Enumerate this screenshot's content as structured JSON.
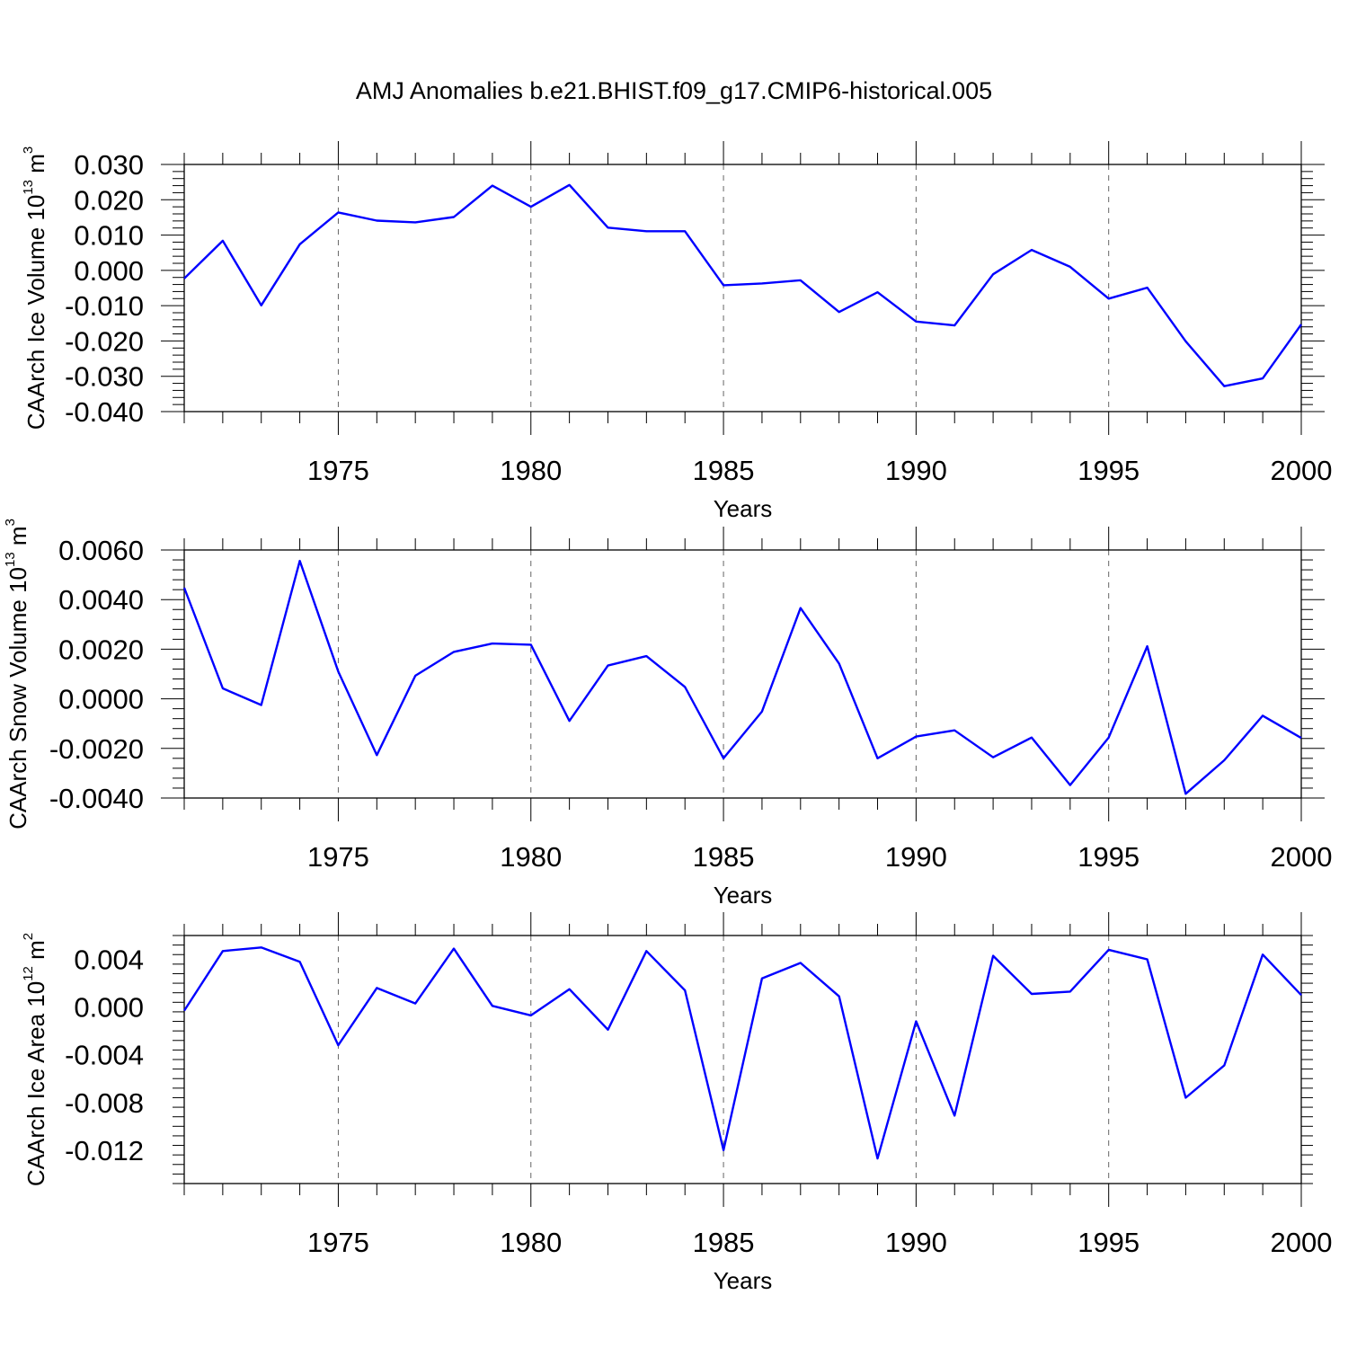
{
  "title": "AMJ Anomalies b.e21.BHIST.f09_g17.CMIP6-historical.005",
  "colors": {
    "series": "#0000ff",
    "axis": "#000000",
    "grid": "#666666"
  },
  "chart_data": [
    {
      "type": "line",
      "ylabel": "CAArch Ice Volume 10",
      "ylabel_sup": "13",
      "ylabel_unit": " m",
      "ylabel_unit_sup": "3",
      "xlabel": "Years",
      "xlim": [
        1971,
        2000
      ],
      "ylim": [
        -0.04,
        0.03
      ],
      "x_ticks": [
        1975,
        1980,
        1985,
        1990,
        1995,
        2000
      ],
      "x_tick_labels": [
        "1975",
        "1980",
        "1985",
        "1990",
        "1995",
        "2000"
      ],
      "y_ticks": [
        0.03,
        0.02,
        0.01,
        0.0,
        -0.01,
        -0.02,
        -0.03,
        -0.04
      ],
      "y_tick_labels": [
        "0.030",
        "0.020",
        "0.010",
        "0.000",
        "-0.010",
        "-0.020",
        "-0.030",
        "-0.040"
      ],
      "grid": "vertical dashed at labeled years",
      "series": [
        {
          "color": "#0000ff",
          "x": [
            1971,
            1972,
            1973,
            1974,
            1975,
            1976,
            1977,
            1978,
            1979,
            1980,
            1981,
            1982,
            1983,
            1984,
            1985,
            1986,
            1987,
            1988,
            1989,
            1990,
            1991,
            1992,
            1993,
            1994,
            1995,
            1996,
            1997,
            1998,
            1999,
            2000
          ],
          "y": [
            -0.0023,
            0.0084,
            -0.0099,
            0.0074,
            0.0164,
            0.0141,
            0.0136,
            0.0151,
            0.024,
            0.018,
            0.0242,
            0.0121,
            0.0111,
            0.0111,
            -0.0042,
            -0.0037,
            -0.0028,
            -0.0118,
            -0.0062,
            -0.0145,
            -0.0156,
            -0.0011,
            0.0058,
            0.001,
            -0.008,
            -0.0049,
            -0.0201,
            -0.0328,
            -0.0306,
            -0.0153
          ]
        }
      ]
    },
    {
      "type": "line",
      "ylabel": "CAArch Snow Volume 10",
      "ylabel_sup": "13",
      "ylabel_unit": " m",
      "ylabel_unit_sup": "3",
      "xlabel": "Years",
      "xlim": [
        1971,
        2000
      ],
      "ylim": [
        -0.004,
        0.006
      ],
      "x_ticks": [
        1975,
        1980,
        1985,
        1990,
        1995,
        2000
      ],
      "x_tick_labels": [
        "1975",
        "1980",
        "1985",
        "1990",
        "1995",
        "2000"
      ],
      "y_ticks": [
        0.006,
        0.004,
        0.002,
        0.0,
        -0.002,
        -0.004
      ],
      "y_tick_labels": [
        "0.0060",
        "0.0040",
        "0.0020",
        "0.0000",
        "-0.0020",
        "-0.0040"
      ],
      "grid": "vertical dashed at labeled years",
      "series": [
        {
          "color": "#0000ff",
          "x": [
            1971,
            1972,
            1973,
            1974,
            1975,
            1976,
            1977,
            1978,
            1979,
            1980,
            1981,
            1982,
            1983,
            1984,
            1985,
            1986,
            1987,
            1988,
            1989,
            1990,
            1991,
            1992,
            1993,
            1994,
            1995,
            1996,
            1997,
            1998,
            1999,
            2000
          ],
          "y": [
            0.00448,
            0.00042,
            -0.00025,
            0.00556,
            0.0011,
            -0.00227,
            0.00093,
            0.00189,
            0.00223,
            0.00218,
            -0.00089,
            0.00134,
            0.00172,
            0.00048,
            -0.0024,
            -0.00051,
            0.00366,
            0.00142,
            -0.0024,
            -0.00152,
            -0.00127,
            -0.00236,
            -0.00156,
            -0.00348,
            -0.00156,
            0.00212,
            -0.00383,
            -0.00248,
            -0.00068,
            -0.00158
          ]
        }
      ]
    },
    {
      "type": "line",
      "ylabel": "CAArch Ice Area 10",
      "ylabel_sup": "12",
      "ylabel_unit": " m",
      "ylabel_unit_sup": "2",
      "xlabel": "Years",
      "xlim": [
        1971,
        2000
      ],
      "ylim": [
        -0.0148,
        0.006
      ],
      "x_ticks": [
        1975,
        1980,
        1985,
        1990,
        1995,
        2000
      ],
      "x_tick_labels": [
        "1975",
        "1980",
        "1985",
        "1990",
        "1995",
        "2000"
      ],
      "y_ticks": [
        0.004,
        0.0,
        -0.004,
        -0.008,
        -0.012
      ],
      "y_tick_labels": [
        "0.004",
        "0.000",
        "-0.004",
        "-0.008",
        "-0.012"
      ],
      "grid": "vertical dashed at labeled years",
      "series": [
        {
          "color": "#0000ff",
          "x": [
            1971,
            1972,
            1973,
            1974,
            1975,
            1976,
            1977,
            1978,
            1979,
            1980,
            1981,
            1982,
            1983,
            1984,
            1985,
            1986,
            1987,
            1988,
            1989,
            1990,
            1991,
            1992,
            1993,
            1994,
            1995,
            1996,
            1997,
            1998,
            1999,
            2000
          ],
          "y": [
            -0.0003,
            0.0047,
            0.005,
            0.0038,
            -0.0032,
            0.0016,
            0.0003,
            0.0049,
            0.0001,
            -0.0007,
            0.0015,
            -0.0019,
            0.0047,
            0.0014,
            -0.012,
            0.0024,
            0.0037,
            0.0009,
            -0.0127,
            -0.0012,
            -0.0091,
            0.0043,
            0.0011,
            0.0013,
            0.0048,
            0.004,
            -0.0076,
            -0.0049,
            0.0044,
            0.001
          ]
        }
      ]
    }
  ]
}
